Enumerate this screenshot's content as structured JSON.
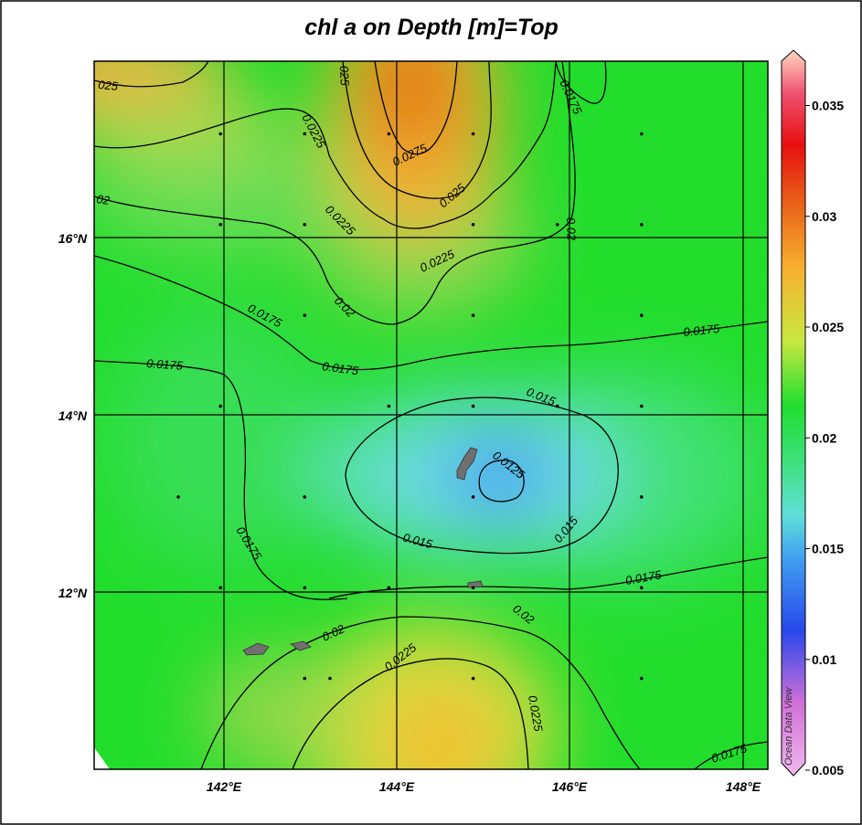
{
  "title": "chl a on Depth [m]=Top",
  "watermark": "Ocean Data View",
  "x_axis_ticks": [
    "142°E",
    "144°E",
    "146°E",
    "148°E"
  ],
  "y_axis_ticks": [
    "16°N",
    "14°N",
    "12°N"
  ],
  "colorbar": {
    "ticks": [
      "0.035",
      "0.03",
      "0.025",
      "0.02",
      "0.015",
      "0.01",
      "0.005"
    ],
    "range": [
      0.005,
      0.037
    ],
    "colors": [
      "#f0a8e8",
      "#7070e0",
      "#2050f0",
      "#40a0f0",
      "#60e0d0",
      "#40e080",
      "#20dd30",
      "#c0e840",
      "#f0c030",
      "#f08018",
      "#e04818",
      "#e01010",
      "#ffd0b0"
    ]
  },
  "contour_labels": [
    "025",
    "0.0225",
    "025",
    "0.0275",
    "0.025",
    "0.0175",
    "02",
    "0.0225",
    "0.0225",
    "0.02",
    "0.02",
    "0.0175",
    "0.0175",
    "0.0175",
    "0.0175",
    "0.015",
    "0.0125",
    "0.015",
    "0.015",
    "0.0175",
    "0.0175",
    "0.02",
    "0.0225",
    "0.02",
    "0.0225",
    "0.0175"
  ],
  "chart_data": {
    "type": "heatmap",
    "title": "chl a on Depth [m]=Top",
    "xlabel": "",
    "ylabel": "",
    "xlim": [
      140.5,
      148.5
    ],
    "ylim": [
      10,
      17.8
    ],
    "x_ticks": [
      "142°E",
      "144°E",
      "146°E",
      "148°E"
    ],
    "y_ticks": [
      "16°N",
      "14°N",
      "12°N"
    ],
    "colorbar_ticks": [
      0.035,
      0.03,
      0.025,
      0.02,
      0.015,
      0.01,
      0.005
    ],
    "contour_levels": [
      0.0125,
      0.015,
      0.0175,
      0.02,
      0.0225,
      0.025,
      0.0275
    ],
    "high_regions": [
      {
        "lon": 144.3,
        "lat": 17.5,
        "value": 0.0285
      },
      {
        "lon": 140.8,
        "lat": 17.6,
        "value": 0.027
      },
      {
        "lon": 144.8,
        "lat": 10.4,
        "value": 0.0245
      }
    ],
    "low_regions": [
      {
        "lon": 145.1,
        "lat": 13.2,
        "value": 0.012
      }
    ],
    "stations": [
      [
        142,
        17
      ],
      [
        143,
        17
      ],
      [
        144,
        17
      ],
      [
        145,
        17
      ],
      [
        147,
        17
      ],
      [
        142,
        16
      ],
      [
        143,
        16
      ],
      [
        145,
        16
      ],
      [
        146,
        16
      ],
      [
        147,
        16
      ],
      [
        143,
        15
      ],
      [
        145,
        15
      ],
      [
        147,
        15
      ],
      [
        142,
        14
      ],
      [
        144,
        14
      ],
      [
        145,
        14
      ],
      [
        146,
        14
      ],
      [
        147,
        14
      ],
      [
        141.5,
        13
      ],
      [
        143,
        13
      ],
      [
        145,
        13
      ],
      [
        147,
        13
      ],
      [
        142,
        12
      ],
      [
        143,
        12
      ],
      [
        144,
        12
      ],
      [
        145,
        12
      ],
      [
        147,
        12
      ],
      [
        143,
        11
      ],
      [
        143.3,
        11
      ],
      [
        145,
        11
      ],
      [
        147,
        11
      ]
    ]
  }
}
